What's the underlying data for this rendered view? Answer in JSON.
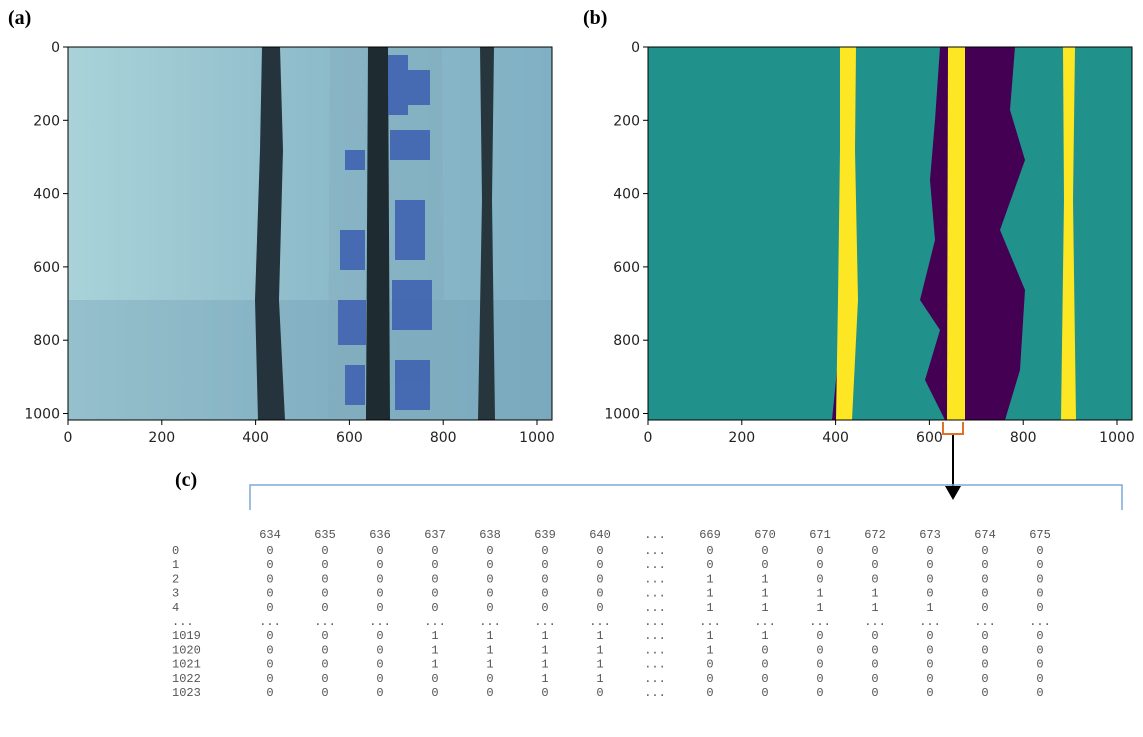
{
  "panels": [
    {
      "label": "(a)",
      "xticks": [
        0,
        200,
        400,
        600,
        800,
        1000
      ],
      "yticks": [
        0,
        200,
        400,
        600,
        800,
        1000
      ]
    },
    {
      "label": "(b)",
      "xticks": [
        0,
        200,
        400,
        600,
        800,
        1000
      ],
      "yticks": [
        0,
        200,
        400,
        600,
        800,
        1000
      ]
    }
  ],
  "table": {
    "label": "(c)",
    "columns": [
      634,
      635,
      636,
      637,
      638,
      639,
      640,
      "...",
      669,
      670,
      671,
      672,
      673,
      674,
      675
    ],
    "rows": [
      {
        "index": 0,
        "cells": [
          0,
          0,
          0,
          0,
          0,
          0,
          0,
          "...",
          0,
          0,
          0,
          0,
          0,
          0,
          0
        ]
      },
      {
        "index": 1,
        "cells": [
          0,
          0,
          0,
          0,
          0,
          0,
          0,
          "...",
          0,
          0,
          0,
          0,
          0,
          0,
          0
        ]
      },
      {
        "index": 2,
        "cells": [
          0,
          0,
          0,
          0,
          0,
          0,
          0,
          "...",
          1,
          1,
          0,
          0,
          0,
          0,
          0
        ]
      },
      {
        "index": 3,
        "cells": [
          0,
          0,
          0,
          0,
          0,
          0,
          0,
          "...",
          1,
          1,
          1,
          1,
          0,
          0,
          0
        ]
      },
      {
        "index": 4,
        "cells": [
          0,
          0,
          0,
          0,
          0,
          0,
          0,
          "...",
          1,
          1,
          1,
          1,
          1,
          0,
          0
        ]
      },
      {
        "index": "...",
        "cells": [
          "...",
          "...",
          "...",
          "...",
          "...",
          "...",
          "...",
          "...",
          "...",
          "...",
          "...",
          "...",
          "...",
          "...",
          "..."
        ]
      },
      {
        "index": 1019,
        "cells": [
          0,
          0,
          0,
          1,
          1,
          1,
          1,
          "...",
          1,
          1,
          0,
          0,
          0,
          0,
          0
        ]
      },
      {
        "index": 1020,
        "cells": [
          0,
          0,
          0,
          1,
          1,
          1,
          1,
          "...",
          1,
          0,
          0,
          0,
          0,
          0,
          0
        ]
      },
      {
        "index": 1021,
        "cells": [
          0,
          0,
          0,
          1,
          1,
          1,
          1,
          "...",
          0,
          0,
          0,
          0,
          0,
          0,
          0
        ]
      },
      {
        "index": 1022,
        "cells": [
          0,
          0,
          0,
          0,
          0,
          1,
          1,
          "...",
          0,
          0,
          0,
          0,
          0,
          0,
          0
        ]
      },
      {
        "index": 1023,
        "cells": [
          0,
          0,
          0,
          0,
          0,
          0,
          0,
          "...",
          0,
          0,
          0,
          0,
          0,
          0,
          0
        ]
      }
    ]
  }
}
